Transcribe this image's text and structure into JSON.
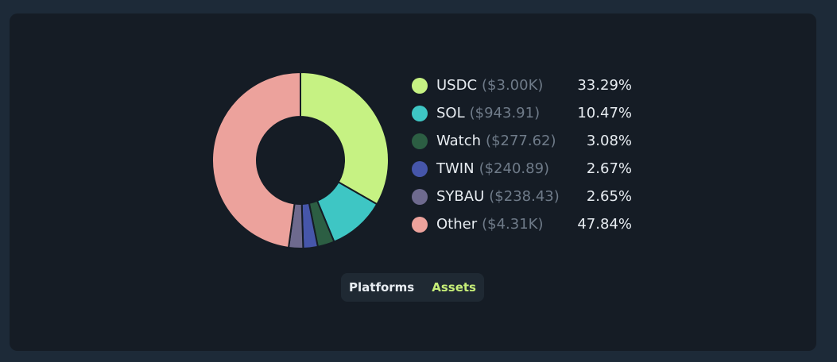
{
  "chart_data": {
    "type": "pie",
    "donut": true,
    "legend_position": "right",
    "slices": [
      {
        "label": "USDC",
        "amount": "($3.00K)",
        "percent_label": "33.29%",
        "value": 33.29,
        "color": "#c6f283"
      },
      {
        "label": "SOL",
        "amount": "($943.91)",
        "percent_label": "10.47%",
        "value": 10.47,
        "color": "#3ec6c4"
      },
      {
        "label": "Watch",
        "amount": "($277.62)",
        "percent_label": "3.08%",
        "value": 3.08,
        "color": "#2c5e43"
      },
      {
        "label": "TWIN",
        "amount": "($240.89)",
        "percent_label": "2.67%",
        "value": 2.67,
        "color": "#4656aa"
      },
      {
        "label": "SYBAU",
        "amount": "($238.43)",
        "percent_label": "2.65%",
        "value": 2.65,
        "color": "#6e6a8e"
      },
      {
        "label": "Other",
        "amount": "($4.31K)",
        "percent_label": "47.84%",
        "value": 47.84,
        "color": "#eca29c"
      }
    ]
  },
  "toggle": {
    "options": [
      "Platforms",
      "Assets"
    ],
    "selected": "Assets"
  },
  "colors": {
    "page_background": "#1d2a38",
    "card_background": "#151c25",
    "active_toggle_text": "#c6ee78",
    "muted_text": "#6f7b89"
  }
}
